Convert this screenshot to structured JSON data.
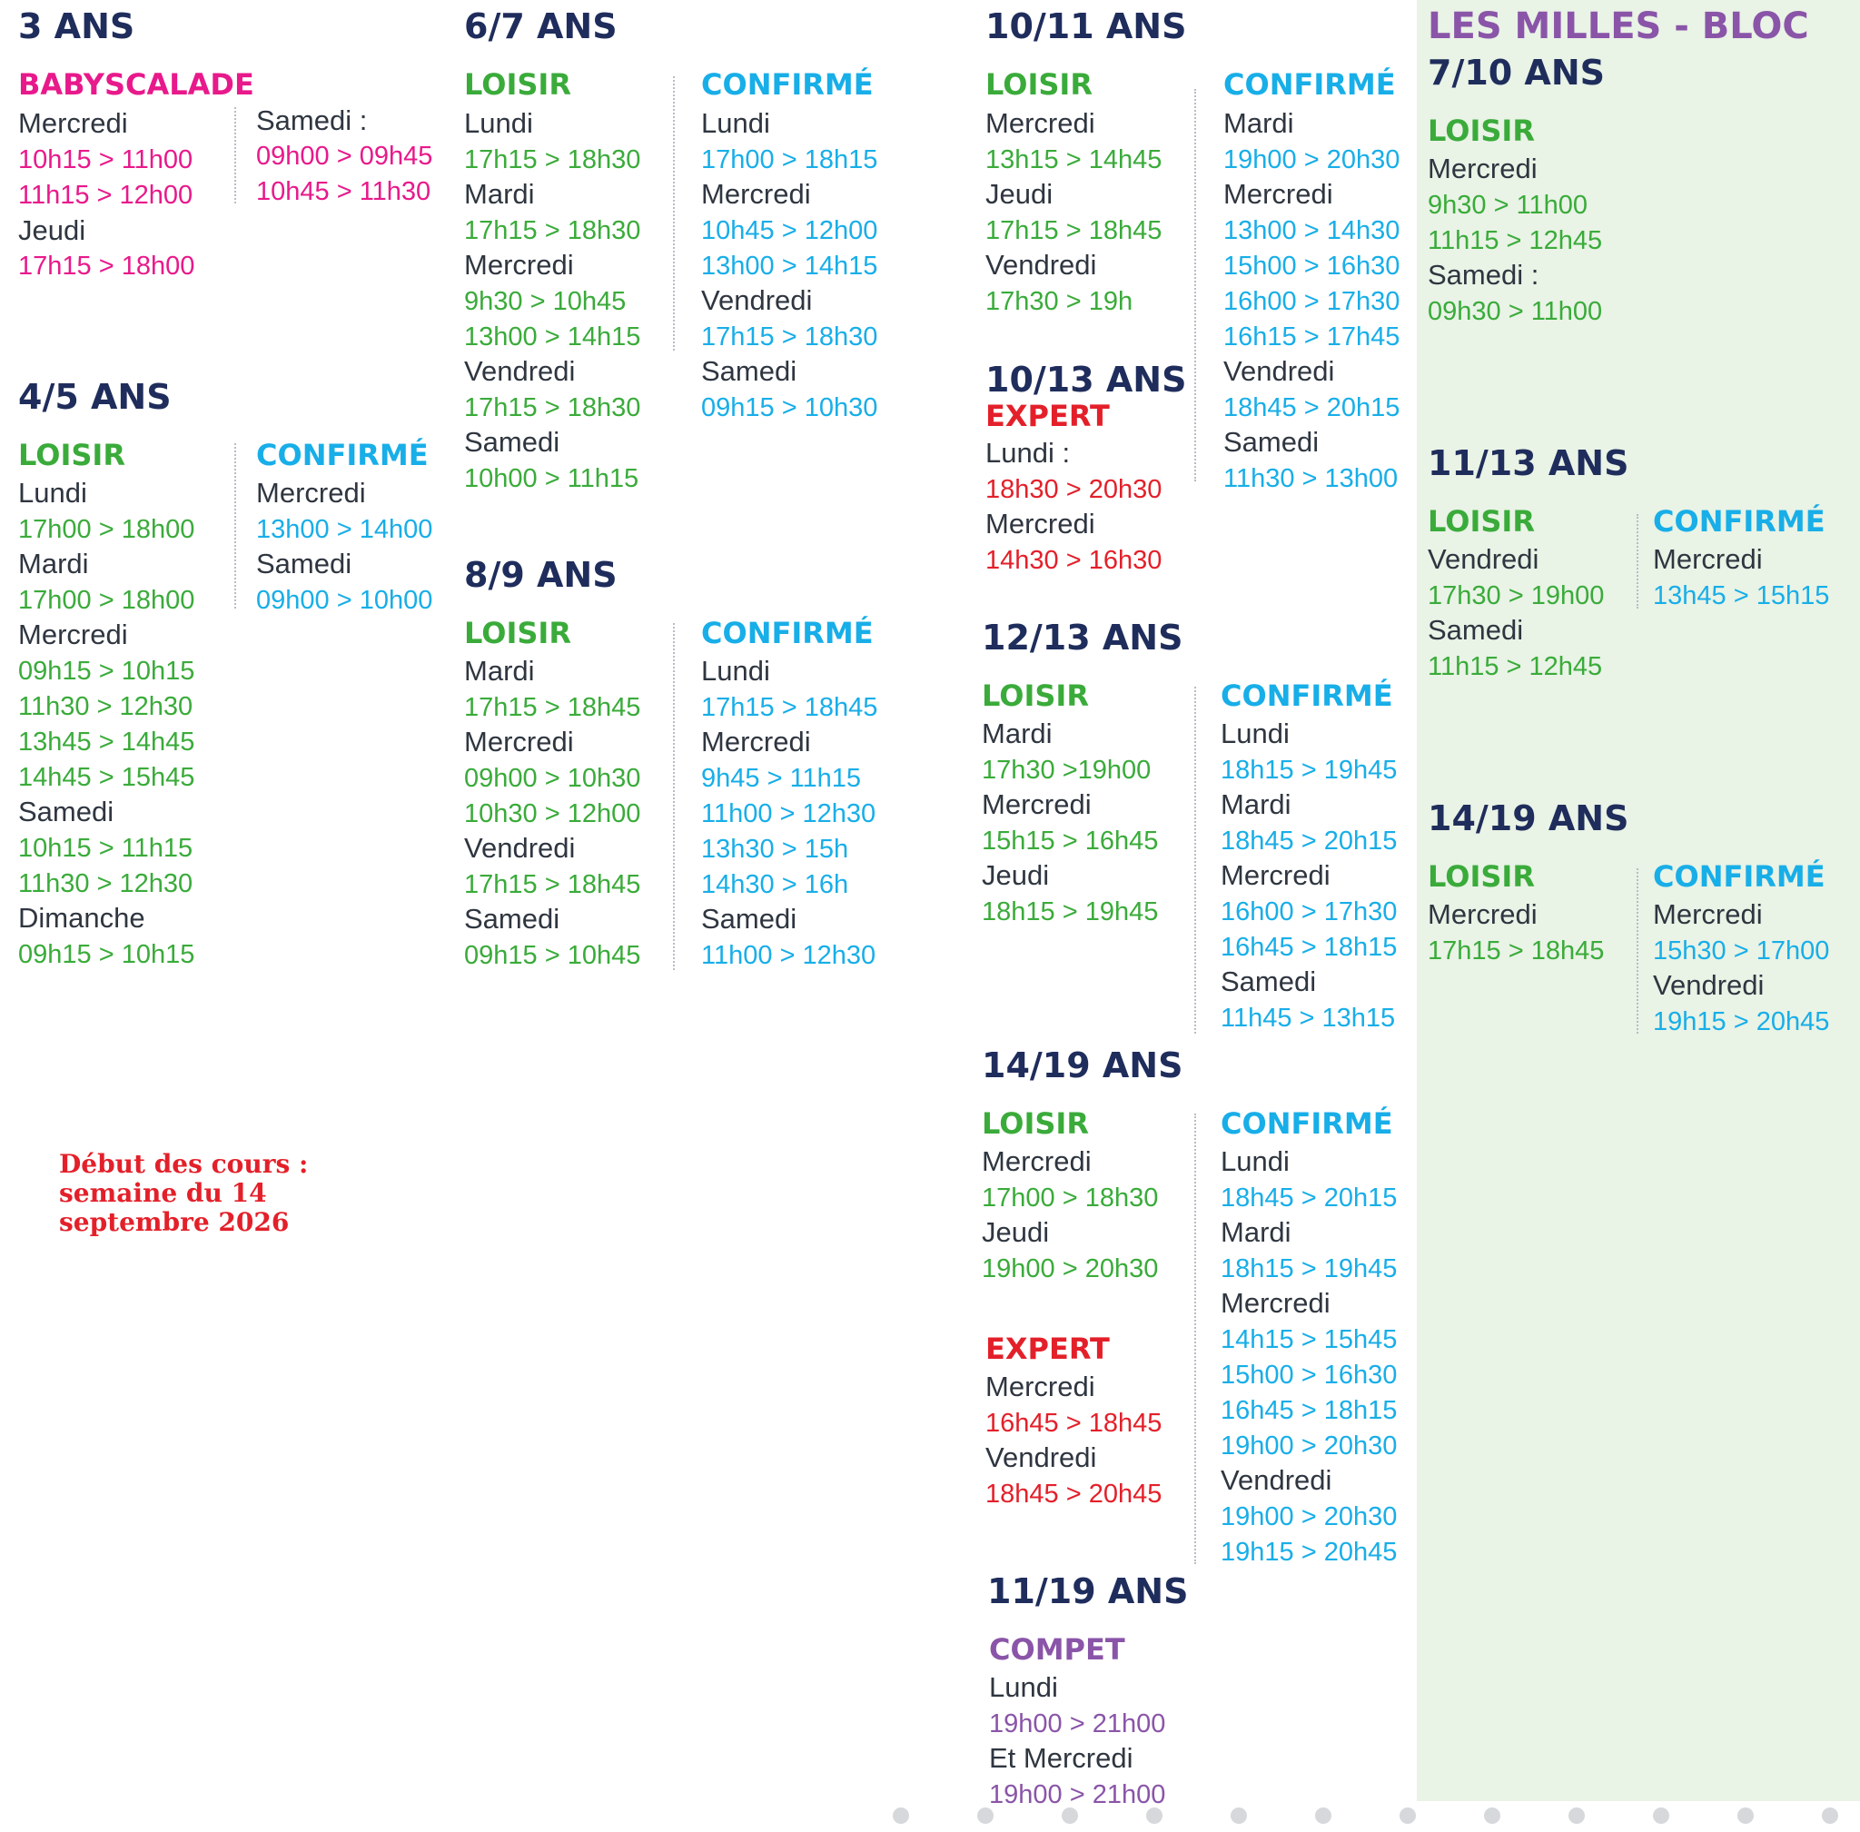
{
  "colors": {
    "heading": "#1f2d5c",
    "loisir": "#3aab3a",
    "confirme": "#18aee8",
    "baby": "#e8198b",
    "expert": "#e3202a",
    "compet": "#8a55a8",
    "day": "#2f3640",
    "bloc_bg": "#e9f3e6"
  },
  "col1": {
    "ans3": {
      "heading": "3 ANS",
      "babyscalade": "BABYSCALADE",
      "a_day1": "Mercredi",
      "a_t1": "10h15  > 11h00",
      "a_t2": "11h15  > 12h00",
      "a_day2": "Jeudi",
      "a_t3": "17h15 > 18h00",
      "b_day1": "Samedi :",
      "b_t1": "09h00 > 09h45",
      "b_t2": "10h45 > 11h30"
    },
    "ans45": {
      "heading": "4/5 ANS",
      "loisir": "LOISIR",
      "l_day1": "Lundi",
      "l_t1": "17h00 > 18h00",
      "l_day2": "Mardi",
      "l_t2": "17h00 > 18h00",
      "l_day3": "Mercredi",
      "l_t3": "09h15 > 10h15",
      "l_t4": "11h30 > 12h30",
      "l_t5": "13h45 > 14h45",
      "l_t6": "14h45 > 15h45",
      "l_day4": "Samedi",
      "l_t7": "10h15 > 11h15",
      "l_t8": "11h30 > 12h30",
      "l_day5": "Dimanche",
      "l_t9": "09h15 > 10h15",
      "confirme": "CONFIRMÉ",
      "c_day1": "Mercredi",
      "c_t1": "13h00 > 14h00",
      "c_day2": "Samedi",
      "c_t2": "09h00 > 10h00"
    },
    "note": {
      "line1": "Début des cours :",
      "line2": "semaine du 14",
      "line3": "septembre 2026"
    }
  },
  "col2": {
    "ans67": {
      "heading": "6/7 ANS",
      "loisir": "LOISIR",
      "l_day1": "Lundi",
      "l_t1": "17h15 > 18h30",
      "l_day2": "Mardi",
      "l_t2": "17h15 > 18h30",
      "l_day3": "Mercredi",
      "l_t3": "9h30 > 10h45",
      "l_t4": "13h00 > 14h15",
      "l_day4": "Vendredi",
      "l_t5": "17h15 > 18h30",
      "l_day5": "Samedi",
      "l_t6": "10h00 > 11h15",
      "confirme": "CONFIRMÉ",
      "c_day1": "Lundi",
      "c_t1": "17h00 > 18h15",
      "c_day2": "Mercredi",
      "c_t2": "10h45 > 12h00",
      "c_t3": "13h00 > 14h15",
      "c_day3": "Vendredi",
      "c_t4": "17h15 > 18h30",
      "c_day4": "Samedi",
      "c_t5": "09h15 > 10h30"
    },
    "ans89": {
      "heading": "8/9 ANS",
      "loisir": "LOISIR",
      "l_day1": "Mardi",
      "l_t1": "17h15 > 18h45",
      "l_day2": "Mercredi",
      "l_t2": "09h00 > 10h30",
      "l_t3": "10h30 > 12h00",
      "l_day3": "Vendredi",
      "l_t4": "17h15 > 18h45",
      "l_day4": "Samedi",
      "l_t5": "09h15 > 10h45",
      "confirme": "CONFIRMÉ",
      "c_day1": "Lundi",
      "c_t1": "17h15 > 18h45",
      "c_day2": "Mercredi",
      "c_t2": "9h45 > 11h15",
      "c_t3": "11h00 > 12h30",
      "c_t4": "13h30 > 15h",
      "c_t5": "14h30 > 16h",
      "c_day3": "Samedi",
      "c_t6": "11h00 > 12h30"
    }
  },
  "col3": {
    "ans1011": {
      "heading": "10/11 ANS",
      "loisir": "LOISIR",
      "l_day1": "Mercredi",
      "l_t1": "13h15 > 14h45",
      "l_day2": "Jeudi",
      "l_t2": "17h15 > 18h45",
      "l_day3": "Vendredi",
      "l_t3": "17h30 > 19h",
      "confirme": "CONFIRMÉ",
      "c_day1": "Mardi",
      "c_t1": "19h00 > 20h30",
      "c_day2": "Mercredi",
      "c_t2": "13h00 > 14h30",
      "c_t3": "15h00 > 16h30",
      "c_t4": "16h00 > 17h30",
      "c_t5": "16h15 > 17h45",
      "c_day3": "Vendredi",
      "c_t6": "18h45 > 20h15",
      "c_day4": "Samedi",
      "c_t7": "11h30 > 13h00"
    },
    "ans1013": {
      "heading": "10/13 ANS",
      "expert": "EXPERT",
      "e_day1": "Lundi :",
      "e_t1": "18h30 > 20h30",
      "e_day2": "Mercredi",
      "e_t2": "14h30 > 16h30"
    },
    "ans1213": {
      "heading": "12/13 ANS",
      "loisir": "LOISIR",
      "l_day1": "Mardi",
      "l_t1": "17h30 >19h00",
      "l_day2": "Mercredi",
      "l_t2": "15h15 > 16h45",
      "l_day3": "Jeudi",
      "l_t3": "18h15 > 19h45",
      "confirme": "CONFIRMÉ",
      "c_day1": "Lundi",
      "c_t1": "18h15 > 19h45",
      "c_day2": "Mardi",
      "c_t2": "18h45 > 20h15",
      "c_day3": "Mercredi",
      "c_t3": "16h00 > 17h30",
      "c_t4": "16h45 > 18h15",
      "c_day4": "Samedi",
      "c_t5": "11h45 > 13h15"
    },
    "ans1419": {
      "heading": "14/19 ANS",
      "loisir": "LOISIR",
      "l_day1": "Mercredi",
      "l_t1": "17h00 > 18h30",
      "l_day2": "Jeudi",
      "l_t2": "19h00 > 20h30",
      "expert": "EXPERT",
      "e_day1": "Mercredi",
      "e_t1": "16h45 > 18h45",
      "e_day2": "Vendredi",
      "e_t2": "18h45 > 20h45",
      "confirme": "CONFIRMÉ",
      "c_day1": "Lundi",
      "c_t1": "18h45 > 20h15",
      "c_day2": "Mardi",
      "c_t2": "18h15 > 19h45",
      "c_day3": "Mercredi",
      "c_t3": "14h15 > 15h45",
      "c_t4": "15h00 > 16h30",
      "c_t5": "16h45 > 18h15",
      "c_t6": "19h00 > 20h30",
      "c_day4": "Vendredi",
      "c_t7": "19h00 > 20h30",
      "c_t8": "19h15 > 20h45"
    },
    "ans1119": {
      "heading": "11/19 ANS",
      "compet": "COMPET",
      "day1": "Lundi",
      "t1": "19h00 > 21h00",
      "day2": "Et Mercredi",
      "t2": "19h00 > 21h00"
    }
  },
  "bloc": {
    "title": "LES MILLES - BLOC",
    "ans710": {
      "heading": "7/10 ANS",
      "loisir": "LOISIR",
      "l_day1": "Mercredi",
      "l_t1": "9h30 > 11h00",
      "l_t2": "11h15 > 12h45",
      "l_day2": "Samedi :",
      "l_t3": "09h30 > 11h00"
    },
    "ans1113": {
      "heading": "11/13 ANS",
      "loisir": "LOISIR",
      "l_day1": "Vendredi",
      "l_t1": "17h30 > 19h00",
      "l_day2": "Samedi",
      "l_t2": "11h15 > 12h45",
      "confirme": "CONFIRMÉ",
      "c_day1": "Mercredi",
      "c_t1": "13h45 > 15h15"
    },
    "ans1419": {
      "heading": "14/19 ANS",
      "loisir": "LOISIR",
      "l_day1": "Mercredi",
      "l_t1": "17h15 > 18h45",
      "confirme": "CONFIRMÉ",
      "c_day1": "Mercredi",
      "c_t1": "15h30 > 17h00",
      "c_day2": "Vendredi",
      "c_t2": "19h15 > 20h45"
    }
  }
}
